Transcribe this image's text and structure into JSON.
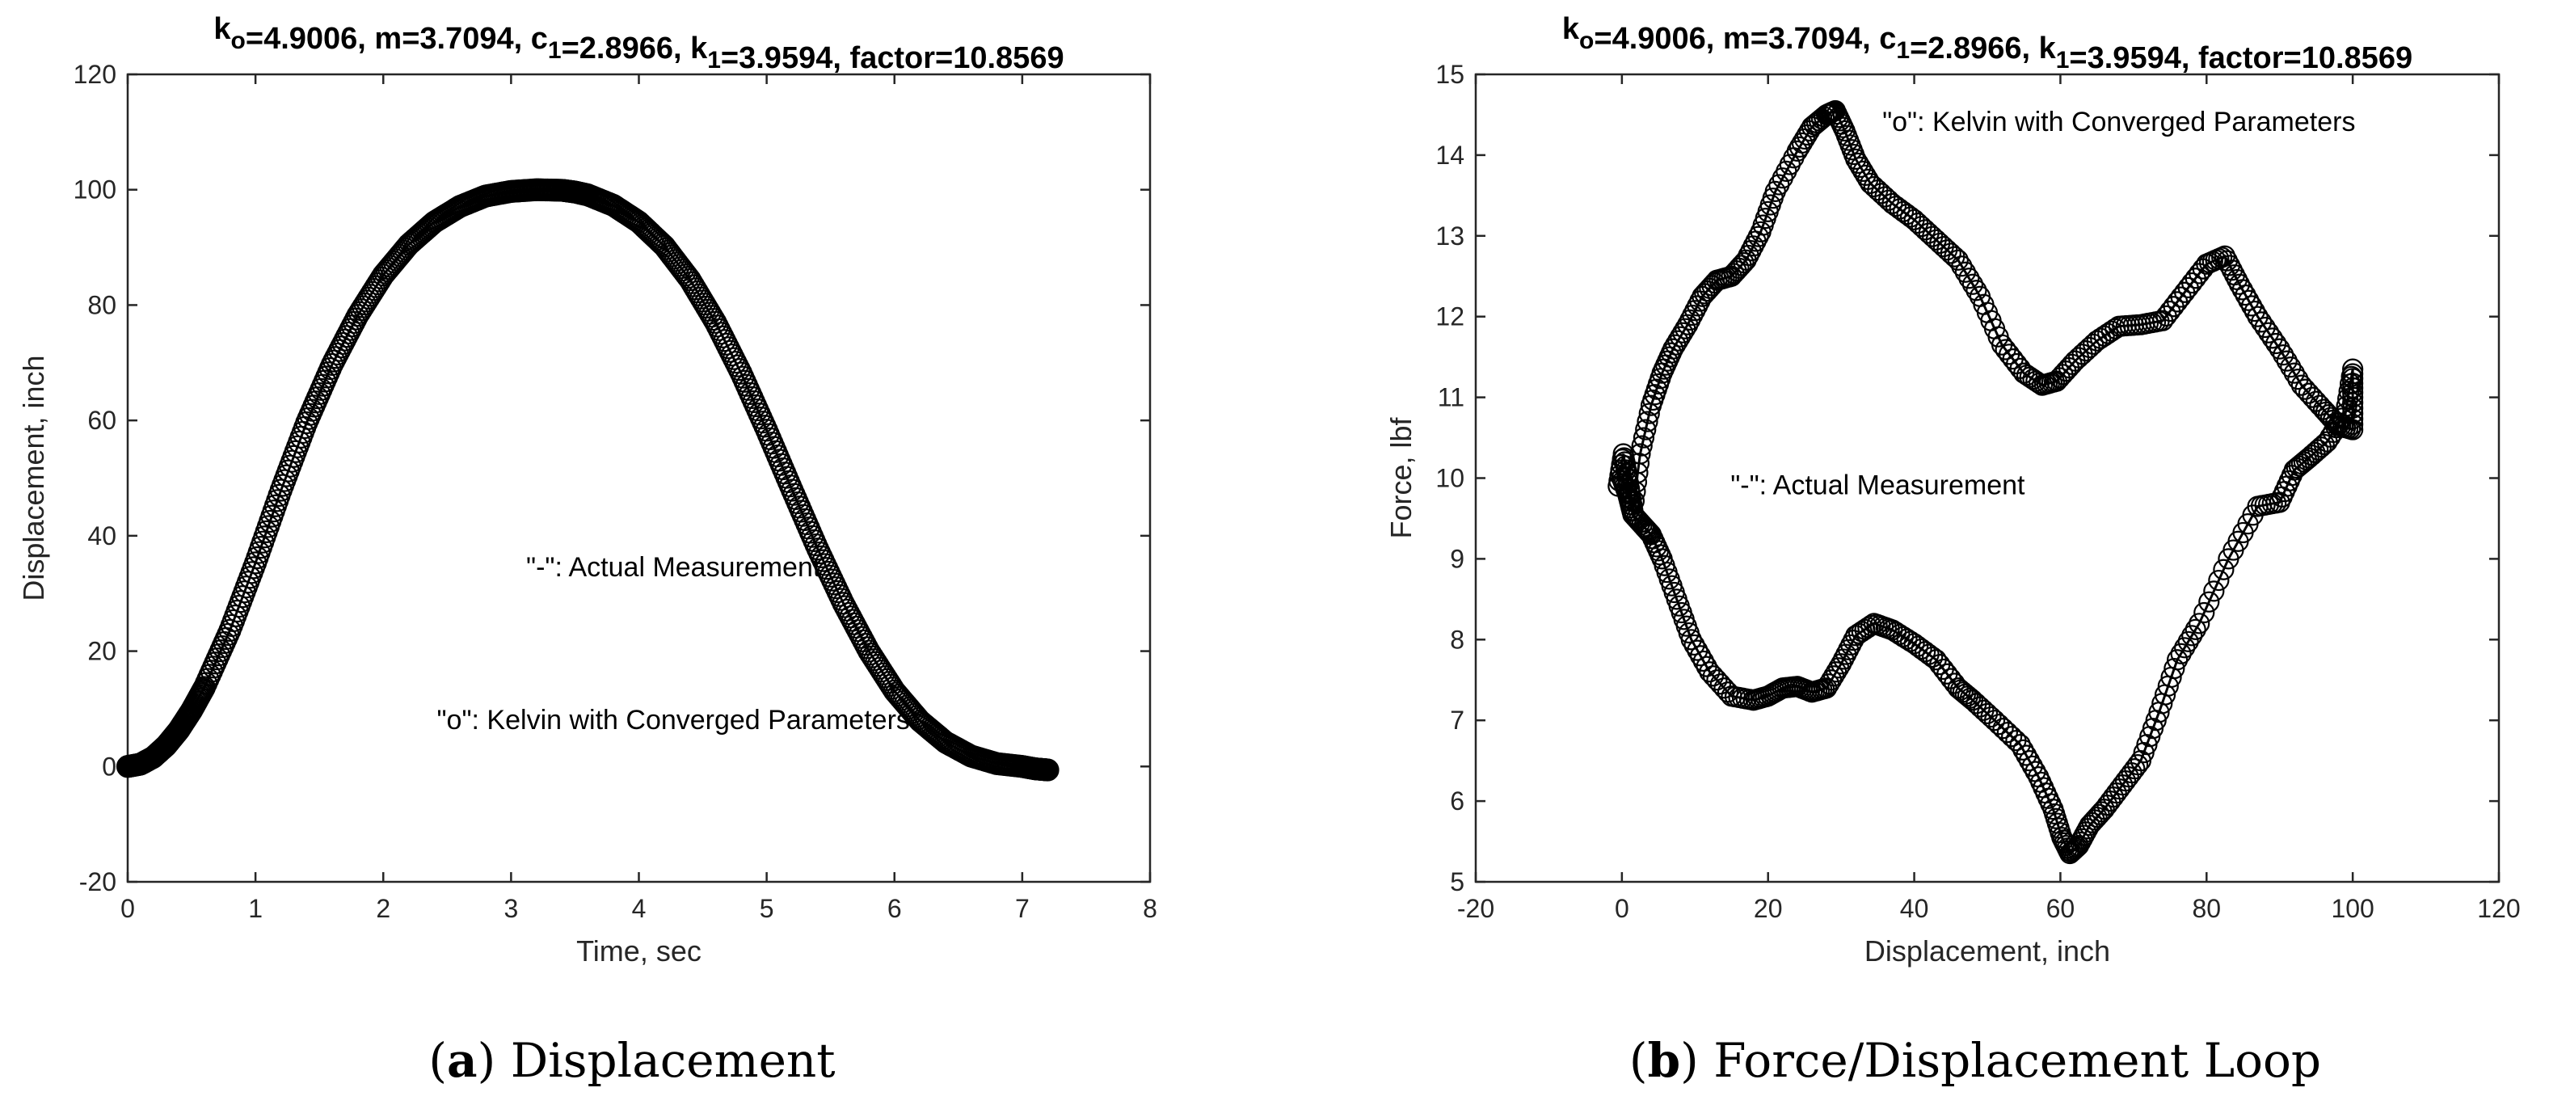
{
  "chart_data": [
    {
      "type": "scatter",
      "title_parts": [
        {
          "t": "k"
        },
        {
          "t": "o",
          "sub": true
        },
        {
          "t": "=4.9006, m=3.7094, c"
        },
        {
          "t": "1",
          "sub": true
        },
        {
          "t": "=2.8966, k"
        },
        {
          "t": "1",
          "sub": true
        },
        {
          "t": "=3.9594, factor=10.8569"
        }
      ],
      "xlabel": "Time, sec",
      "ylabel": "Displacement, inch",
      "xlim": [
        0,
        8
      ],
      "ylim": [
        -20,
        120
      ],
      "xticks": [
        "0",
        "1",
        "2",
        "3",
        "4",
        "5",
        "6",
        "7",
        "8"
      ],
      "yticks": [
        "-20",
        "0",
        "20",
        "40",
        "60",
        "80",
        "100",
        "120"
      ],
      "grid": false,
      "annotations": [
        {
          "text": "\"-\": Actual Measurement",
          "x": 4.27,
          "y": 33
        },
        {
          "text": "\"o\": Kelvin with Converged Parameters",
          "x": 4.27,
          "y": 6.5
        }
      ],
      "series": [
        {
          "marker": "o",
          "x": [
            0.0,
            0.1,
            0.2,
            0.3,
            0.4,
            0.5,
            0.6,
            0.8,
            1.0,
            1.2,
            1.4,
            1.6,
            1.8,
            2.0,
            2.2,
            2.4,
            2.6,
            2.8,
            3.0,
            3.2,
            3.4,
            3.5,
            3.6,
            3.8,
            4.0,
            4.2,
            4.4,
            4.6,
            4.8,
            5.0,
            5.2,
            5.4,
            5.6,
            5.8,
            6.0,
            6.2,
            6.4,
            6.6,
            6.8,
            7.0,
            7.1,
            7.2
          ],
          "y": [
            0.0,
            0.4,
            1.6,
            3.6,
            6.3,
            9.7,
            13.7,
            23.6,
            35.3,
            47.9,
            59.6,
            69.7,
            78.2,
            85.2,
            90.5,
            94.4,
            97.1,
            98.9,
            99.7,
            100.0,
            99.9,
            99.6,
            99.1,
            97.3,
            94.4,
            90.2,
            84.4,
            77.0,
            68.2,
            58.3,
            47.9,
            37.7,
            28.3,
            20.0,
            13.1,
            7.9,
            4.2,
            1.8,
            0.5,
            0.0,
            -0.4,
            -0.6
          ]
        }
      ]
    },
    {
      "type": "scatter",
      "title_parts": [
        {
          "t": "k"
        },
        {
          "t": "o",
          "sub": true
        },
        {
          "t": "=4.9006, m=3.7094, c"
        },
        {
          "t": "1",
          "sub": true
        },
        {
          "t": "=2.8966, k"
        },
        {
          "t": "1",
          "sub": true
        },
        {
          "t": "=3.9594, factor=10.8569"
        }
      ],
      "xlabel": "Displacement, inch",
      "ylabel": "Force, lbf",
      "xlim": [
        -20,
        120
      ],
      "ylim": [
        5,
        15
      ],
      "xticks": [
        "-20",
        "0",
        "20",
        "40",
        "60",
        "80",
        "100",
        "120"
      ],
      "yticks": [
        "5",
        "6",
        "7",
        "8",
        "9",
        "10",
        "11",
        "12",
        "13",
        "14",
        "15"
      ],
      "grid": false,
      "annotations": [
        {
          "text": "\"o\": Kelvin with Converged Parameters",
          "x": 68,
          "y": 14.3
        },
        {
          "text": "\"-\": Actual Measurement",
          "x": 35,
          "y": 9.8
        }
      ],
      "series": [
        {
          "marker": "o",
          "x": [
            -0.5,
            0.2,
            0.8,
            1.5,
            2.5,
            4.0,
            5.5,
            7.0,
            9.0,
            11.0,
            13.0,
            15.0,
            17.0,
            19.0,
            21.0,
            24.0,
            26.0,
            28.0,
            29.2,
            30.5,
            32.0,
            34.0,
            37.0,
            40.0,
            43.0,
            46.0,
            49.0,
            52.0,
            55.0,
            57.5,
            59.5,
            62.0,
            65.0,
            68.0,
            71.0,
            74.0,
            77.0,
            80.0,
            82.5,
            84.5,
            87.0,
            90.0,
            93.0,
            96.0,
            98.0,
            100.0,
            100.0,
            100.0,
            99.0,
            96.5,
            94.0,
            92.0,
            90.0,
            87.0,
            83.0,
            79.0,
            76.0,
            73.5,
            71.0,
            68.5,
            66.0,
            64.0,
            62.5,
            61.3,
            60.2,
            59.0,
            57.0,
            54.5,
            51.0,
            48.0,
            46.0,
            43.0,
            40.0,
            37.0,
            34.5,
            32.0,
            30.0,
            28.0,
            26.0,
            24.0,
            22.0,
            20.0,
            18.0,
            15.0,
            12.0,
            9.5,
            7.5,
            5.5,
            4.0,
            3.0,
            1.5,
            0.8,
            0.0
          ],
          "y": [
            9.9,
            10.3,
            10.0,
            9.6,
            10.3,
            10.9,
            11.3,
            11.6,
            11.9,
            12.25,
            12.45,
            12.5,
            12.7,
            13.05,
            13.55,
            14.05,
            14.35,
            14.5,
            14.55,
            14.3,
            13.95,
            13.65,
            13.4,
            13.2,
            12.95,
            12.7,
            12.25,
            11.65,
            11.3,
            11.15,
            11.2,
            11.45,
            11.7,
            11.88,
            11.9,
            11.95,
            12.3,
            12.65,
            12.75,
            12.4,
            12.0,
            11.6,
            11.15,
            10.85,
            10.65,
            10.6,
            11.0,
            11.35,
            10.8,
            10.45,
            10.25,
            10.1,
            9.7,
            9.65,
            9.0,
            8.2,
            7.75,
            7.1,
            6.5,
            6.2,
            5.9,
            5.7,
            5.45,
            5.35,
            5.55,
            5.9,
            6.3,
            6.7,
            7.0,
            7.25,
            7.4,
            7.75,
            7.95,
            8.12,
            8.2,
            8.05,
            7.7,
            7.4,
            7.35,
            7.42,
            7.4,
            7.3,
            7.25,
            7.3,
            7.6,
            8.0,
            8.5,
            9.0,
            9.3,
            9.4,
            9.55,
            9.8,
            10.0
          ]
        }
      ]
    }
  ],
  "captions": [
    {
      "label": "(a)",
      "letter": "a",
      "text": "Displacement"
    },
    {
      "label": "(b)",
      "letter": "b",
      "text": "Force/Displacement Loop"
    }
  ]
}
